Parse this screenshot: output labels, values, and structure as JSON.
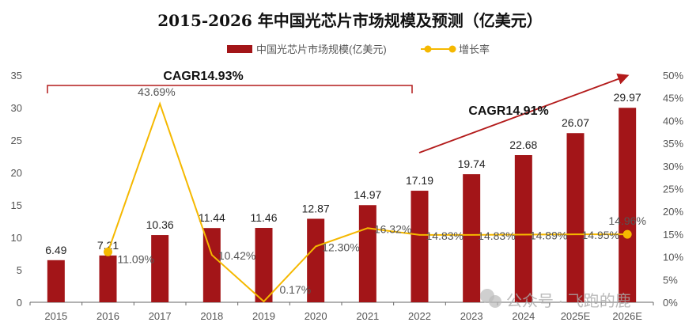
{
  "chart_data": {
    "type": "bar+line",
    "title": "2015-2026 年中国光芯片市场规模及预测（亿美元）",
    "categories": [
      "2015",
      "2016",
      "2017",
      "2018",
      "2019",
      "2020",
      "2021",
      "2022",
      "2023",
      "2024",
      "2025E",
      "2026E"
    ],
    "series": [
      {
        "name": "中国光芯片市场规模(亿美元)",
        "type": "bar",
        "axis": "left",
        "color": "#A31518",
        "values": [
          6.49,
          7.21,
          10.36,
          11.44,
          11.46,
          12.87,
          14.97,
          17.19,
          19.74,
          22.68,
          26.07,
          29.97
        ],
        "labels": [
          "6.49",
          "7.21",
          "10.36",
          "11.44",
          "11.46",
          "12.87",
          "14.97",
          "17.19",
          "19.74",
          "22.68",
          "26.07",
          "29.97"
        ]
      },
      {
        "name": "增长率",
        "type": "line",
        "axis": "right",
        "color": "#F5B800",
        "values": [
          null,
          11.09,
          43.69,
          10.42,
          0.17,
          12.3,
          16.32,
          14.83,
          14.83,
          14.89,
          14.95,
          14.96
        ],
        "labels": [
          "",
          "11.09%",
          "43.69%",
          "10.42%",
          "0.17%",
          "12.30%",
          "16.32%",
          "14.83%",
          "14.83%",
          "14.89%",
          "14.95%",
          "14.96%"
        ]
      }
    ],
    "ylim": [
      0,
      35
    ],
    "yticks": [
      "0",
      "5",
      "10",
      "15",
      "20",
      "25",
      "30",
      "35"
    ],
    "y2lim": [
      0,
      50
    ],
    "y2ticks": [
      "0%",
      "5%",
      "10%",
      "15%",
      "20%",
      "25%",
      "30%",
      "35%",
      "40%",
      "45%",
      "50%"
    ],
    "legend": "top-center",
    "annotations": [
      {
        "text": "CAGR14.93%",
        "span": [
          "2015",
          "2022"
        ]
      },
      {
        "text": "CAGR14.91%",
        "span": [
          "2022",
          "2026E"
        ]
      }
    ]
  },
  "watermark": "公众号 · 飞跑的鹿"
}
